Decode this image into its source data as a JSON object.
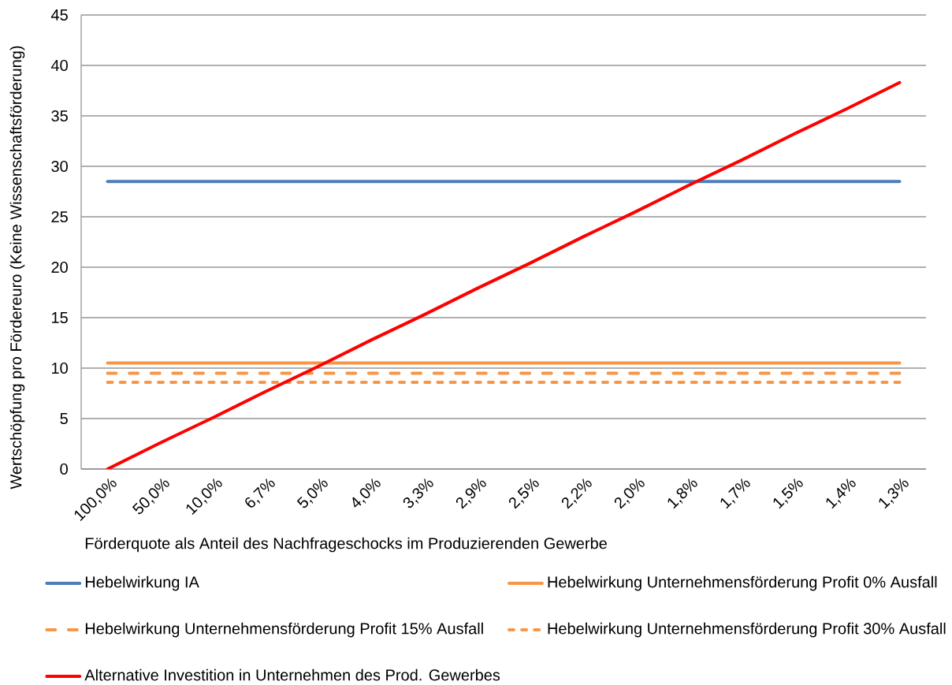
{
  "chart_data": {
    "type": "line",
    "xlabel": "Förderquote als Anteil des Nachfrageschocks im Produzierenden Gewerbe",
    "ylabel": "Wertschöpfung pro Fördereuro (Keine Wissenschaftsförderung)",
    "categories": [
      "100,0%",
      "50,0%",
      "10,0%",
      "6,7%",
      "5,0%",
      "4,0%",
      "3,3%",
      "2,9%",
      "2,5%",
      "2,2%",
      "2,0%",
      "1,8%",
      "1,7%",
      "1,5%",
      "1,4%",
      "1,3%"
    ],
    "ylim": [
      0,
      45
    ],
    "yticks": [
      0,
      5,
      10,
      15,
      20,
      25,
      30,
      35,
      40,
      45
    ],
    "grid": "y",
    "legend": "bottom",
    "marker": "none",
    "series": [
      {
        "name": "Hebelwirkung IA",
        "color": "#4a7ebb",
        "line_style": "solid",
        "values": [
          28.5,
          28.5,
          28.5,
          28.5,
          28.5,
          28.5,
          28.5,
          28.5,
          28.5,
          28.5,
          28.5,
          28.5,
          28.5,
          28.5,
          28.5,
          28.5
        ]
      },
      {
        "name": "Hebelwirkung Unternehmensförderung Profit 0% Ausfall",
        "color": "#f79646",
        "line_style": "solid",
        "values": [
          10.5,
          10.5,
          10.5,
          10.5,
          10.5,
          10.5,
          10.5,
          10.5,
          10.5,
          10.5,
          10.5,
          10.5,
          10.5,
          10.5,
          10.5,
          10.5
        ]
      },
      {
        "name": "Hebelwirkung Unternehmensförderung Profit 15% Ausfall",
        "color": "#f79646",
        "line_style": "dashed",
        "values": [
          9.5,
          9.5,
          9.5,
          9.5,
          9.5,
          9.5,
          9.5,
          9.5,
          9.5,
          9.5,
          9.5,
          9.5,
          9.5,
          9.5,
          9.5,
          9.5
        ]
      },
      {
        "name": "Hebelwirkung Unternehmensförderung Profit 30% Ausfall",
        "color": "#f79646",
        "line_style": "dotted",
        "values": [
          8.6,
          8.6,
          8.6,
          8.6,
          8.6,
          8.6,
          8.6,
          8.6,
          8.6,
          8.6,
          8.6,
          8.6,
          8.6,
          8.6,
          8.6,
          8.6
        ]
      },
      {
        "name": "Alternative Investition in Unternehmen des Prod. Gewerbes",
        "color": "#ff0000",
        "line_style": "solid",
        "values": [
          0,
          2.6,
          5.1,
          7.7,
          10.2,
          12.8,
          15.3,
          17.9,
          20.4,
          23,
          25.5,
          28.1,
          30.6,
          33.2,
          35.7,
          38.3
        ]
      }
    ]
  }
}
